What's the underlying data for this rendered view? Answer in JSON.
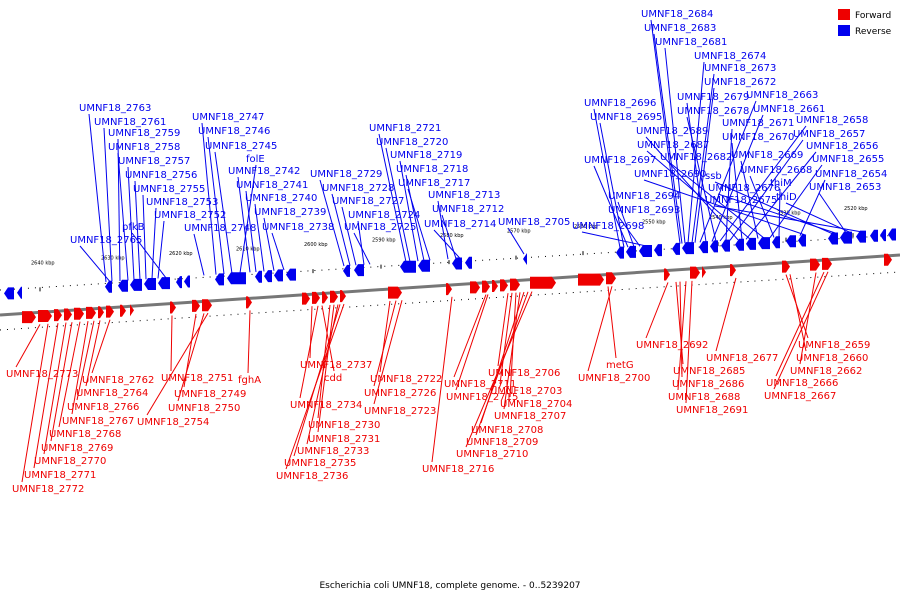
{
  "caption": "Escherichia coli UMNF18, complete genome. - 0..5239207",
  "legend": {
    "forward": {
      "label": "Forward",
      "color": "#ee0000"
    },
    "reverse": {
      "label": "Reverse",
      "color": "#0000ee"
    }
  },
  "ticks": [
    "2640 kbp",
    "2630 kbp",
    "2620 kbp",
    "2610 kbp",
    "2600 kbp",
    "2590 kbp",
    "2580 kbp",
    "2570 kbp",
    "2560 kbp",
    "2550 kbp",
    "2540 kbp",
    "2530 kbp",
    "2520 kbp"
  ],
  "reverse_labels": [
    "UMNF18_2684",
    "UMNF18_2683",
    "UMNF18_2681",
    "UMNF18_2674",
    "UMNF18_2673",
    "UMNF18_2672",
    "UMNF18_2663",
    "UMNF18_2679",
    "UMNF18_2661",
    "UMNF18_2678",
    "UMNF18_2658",
    "UMNF18_2671",
    "UMNF18_2657",
    "UMNF18_2689",
    "UMNF18_2670",
    "UMNF18_2656",
    "UMNF18_2687",
    "UMNF18_2669",
    "UMNF18_2682",
    "UMNF18_2655",
    "UMNF18_2668",
    "thiM",
    "UMNF18_2654",
    "UMNF18_2690",
    "ssb",
    "UMNF18_2676",
    "UMNF18_2653",
    "thiD",
    "UMNF18_2675",
    "UMNF18_2696",
    "UMNF18_2695",
    "UMNF18_2697",
    "UMNF18_2694",
    "UMNF18_2693",
    "UMNF18_2698",
    "UMNF18_2705",
    "UMNF18_2721",
    "UMNF18_2720",
    "UMNF18_2719",
    "UMNF18_2718",
    "UMNF18_2717",
    "UMNF18_2713",
    "UMNF18_2712",
    "UMNF18_2714",
    "UMNF18_2729",
    "UMNF18_2728",
    "UMNF18_2727",
    "UMNF18_2724",
    "UMNF18_2725",
    "UMNF18_2747",
    "UMNF18_2746",
    "UMNF18_2745",
    "folE",
    "UMNF18_2742",
    "UMNF18_2741",
    "UMNF18_2740",
    "UMNF18_2739",
    "UMNF18_2738",
    "UMNF18_2748",
    "UMNF18_2763",
    "UMNF18_2761",
    "UMNF18_2759",
    "UMNF18_2758",
    "UMNF18_2757",
    "UMNF18_2756",
    "UMNF18_2755",
    "UMNF18_2753",
    "UMNF18_2752",
    "pfkB",
    "UMNF18_2765"
  ],
  "forward_labels": [
    "UMNF18_2773",
    "UMNF18_2762",
    "UMNF18_2764",
    "UMNF18_2766",
    "UMNF18_2767",
    "UMNF18_2768",
    "UMNF18_2769",
    "UMNF18_2770",
    "UMNF18_2771",
    "UMNF18_2772",
    "UMNF18_2751",
    "UMNF18_2749",
    "UMNF18_2750",
    "UMNF18_2754",
    "fghA",
    "UMNF18_2737",
    "cdd",
    "UMNF18_2734",
    "UMNF18_2730",
    "UMNF18_2731",
    "UMNF18_2733",
    "UMNF18_2735",
    "UMNF18_2736",
    "UMNF18_2722",
    "UMNF18_2726",
    "UMNF18_2723",
    "UMNF18_2711",
    "UMNF18_2715",
    "UMNF18_2716",
    "UMNF18_2706",
    "UMNF18_2703",
    "UMNF18_2704",
    "UMNF18_2707",
    "UMNF18_2708",
    "UMNF18_2709",
    "UMNF18_2710",
    "metG",
    "UMNF18_2700",
    "UMNF18_2692",
    "UMNF18_2685",
    "UMNF18_2686",
    "UMNF18_2688",
    "UMNF18_2691",
    "UMNF18_2677",
    "UMNF18_2659",
    "UMNF18_2660",
    "UMNF18_2662",
    "UMNF18_2666",
    "UMNF18_2667"
  ]
}
